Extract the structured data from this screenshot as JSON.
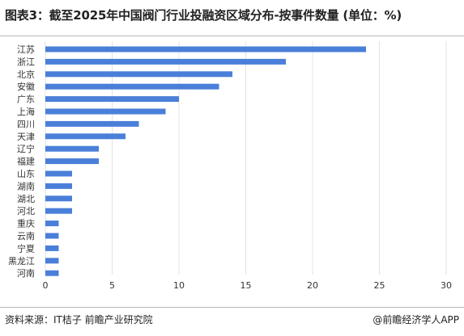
{
  "header": {
    "title": "图表3：截至2025年中国阀门行业投融资区域分布-按事件数量 (单位：%)"
  },
  "footer": {
    "source": "资料来源：IT桔子 前瞻产业研究院",
    "brand": "@前瞻经济学人APP"
  },
  "chart_data": {
    "type": "bar",
    "orientation": "horizontal",
    "title": "图表3：截至2025年中国阀门行业投融资区域分布-按事件数量 (单位：%)",
    "categories": [
      "江苏",
      "浙江",
      "北京",
      "安徽",
      "广东",
      "上海",
      "四川",
      "天津",
      "辽宁",
      "福建",
      "山东",
      "湖南",
      "湖北",
      "河北",
      "重庆",
      "云南",
      "宁夏",
      "黑龙江",
      "河南"
    ],
    "values": [
      24,
      18,
      14,
      13,
      10,
      9,
      7,
      6,
      4,
      4,
      2,
      2,
      2,
      2,
      1,
      1,
      1,
      1,
      1
    ],
    "xlim": [
      0,
      30
    ],
    "xticks": [
      "0",
      "5",
      "10",
      "15",
      "20",
      "25",
      "30"
    ],
    "grid": true,
    "bar_color": "#4a7fd9"
  }
}
